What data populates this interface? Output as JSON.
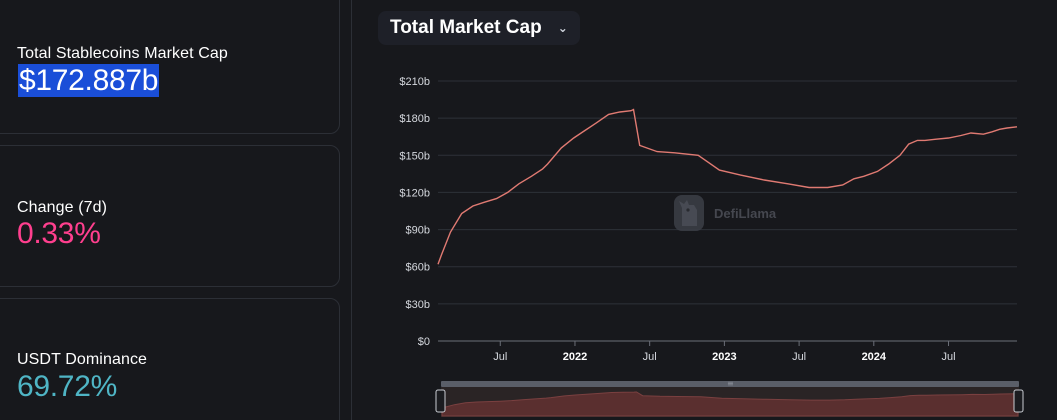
{
  "stats": {
    "market_cap": {
      "label": "Total Stablecoins Market Cap",
      "value": "$172.887b"
    },
    "change_7d": {
      "label": "Change (7d)",
      "value": "0.33%",
      "color": "#ff3f8e"
    },
    "usdt_dominance": {
      "label": "USDT Dominance",
      "value": "69.72%",
      "color": "#4fb5c5"
    }
  },
  "chart_selector": {
    "label": "Total Market Cap",
    "icon": "chevron-down-icon"
  },
  "watermark": {
    "text": "DefiLlama",
    "icon": "llama-icon"
  },
  "chart_data": {
    "type": "line",
    "title": "",
    "xlabel": "",
    "ylabel": "",
    "line_color": "#e07a72",
    "ylim": [
      0,
      210
    ],
    "y_ticks": [
      "$0",
      "$30b",
      "$60b",
      "$90b",
      "$120b",
      "$150b",
      "$180b",
      "$210b"
    ],
    "y_tick_values": [
      0,
      30,
      60,
      90,
      120,
      150,
      180,
      210
    ],
    "x_ticks": [
      {
        "label": "Jul",
        "month": 6,
        "bold": false
      },
      {
        "label": "2022",
        "month": 12,
        "bold": true
      },
      {
        "label": "Jul",
        "month": 18,
        "bold": false
      },
      {
        "label": "2023",
        "month": 24,
        "bold": true
      },
      {
        "label": "Jul",
        "month": 30,
        "bold": false
      },
      {
        "label": "2024",
        "month": 36,
        "bold": true
      },
      {
        "label": "Jul",
        "month": 42,
        "bold": false
      }
    ],
    "xlim_months": [
      1,
      47.5
    ],
    "grid": true,
    "series": [
      {
        "x": [
          1.0,
          1.3,
          2.0,
          2.9,
          3.8,
          4.7,
          5.7,
          6.6,
          7.5,
          8.5,
          9.4,
          9.8,
          10.9,
          11.9,
          12.8,
          13.7,
          14.7,
          15.6,
          16.5,
          16.7,
          17.2,
          18.6,
          20.0,
          21.9,
          23.6,
          25.3,
          27.2,
          29.1,
          30.8,
          32.3,
          33.5,
          34.4,
          35.2,
          36.3,
          37.2,
          38.1,
          38.8,
          39.5,
          40.1,
          41.0,
          42.0,
          43.0,
          43.8,
          44.8,
          45.5,
          46.1,
          46.7,
          47.5
        ],
        "y": [
          62,
          70,
          88,
          103,
          109,
          112,
          115,
          120,
          127,
          133,
          139,
          143,
          156,
          164,
          170,
          176,
          183,
          185,
          186,
          187,
          158,
          153,
          152,
          150,
          138,
          134,
          130,
          127,
          124,
          124,
          126,
          131,
          133,
          137,
          143,
          150,
          159,
          162,
          162,
          163,
          164,
          166,
          168,
          167,
          169,
          171,
          172,
          173
        ]
      }
    ]
  }
}
